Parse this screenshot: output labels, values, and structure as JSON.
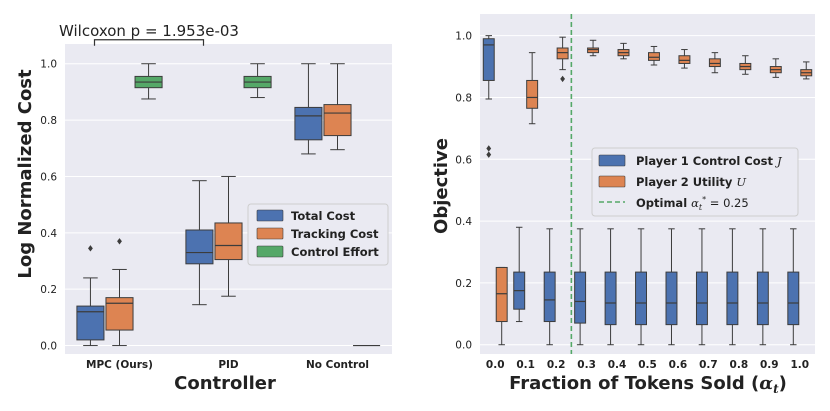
{
  "colors": {
    "panel_bg": "#eaeaf2",
    "grid": "#ffffff",
    "blue": "#4c72b0",
    "orange": "#dd8452",
    "green": "#55a868",
    "whisker": "#3c3c3c",
    "optimal_line": "#55a868"
  },
  "chart_data": [
    {
      "type": "boxplot",
      "title": "",
      "xlabel": "Controller",
      "ylabel": "Log Normalized Cost",
      "ylim": [
        -0.03,
        1.07
      ],
      "yticks": [
        "0.0",
        "0.2",
        "0.4",
        "0.6",
        "0.8",
        "1.0"
      ],
      "yticks_values": [
        0.0,
        0.2,
        0.4,
        0.6,
        0.8,
        1.0
      ],
      "categories": [
        "MPC (Ours)",
        "PID",
        "No Control"
      ],
      "annotation": {
        "text": "Wilcoxon p = 1.953e-03",
        "between": [
          "MPC (Ours)",
          "PID"
        ],
        "y": 1.09
      },
      "legend": {
        "position": "center-right",
        "entries": [
          "Total Cost",
          "Tracking Cost",
          "Control Effort"
        ]
      },
      "series": [
        {
          "name": "Total Cost",
          "color_key": "blue",
          "boxes": [
            {
              "q1": 0.02,
              "median": 0.12,
              "q3": 0.14,
              "whislo": 0.0,
              "whishi": 0.24,
              "fliers": [
                0.345
              ]
            },
            {
              "q1": 0.29,
              "median": 0.33,
              "q3": 0.41,
              "whislo": 0.145,
              "whishi": 0.585,
              "fliers": []
            },
            {
              "q1": 0.73,
              "median": 0.815,
              "q3": 0.845,
              "whislo": 0.68,
              "whishi": 1.0,
              "fliers": []
            }
          ]
        },
        {
          "name": "Tracking Cost",
          "color_key": "orange",
          "boxes": [
            {
              "q1": 0.055,
              "median": 0.15,
              "q3": 0.17,
              "whislo": 0.0,
              "whishi": 0.27,
              "fliers": [
                0.37
              ]
            },
            {
              "q1": 0.305,
              "median": 0.355,
              "q3": 0.435,
              "whislo": 0.175,
              "whishi": 0.6,
              "fliers": []
            },
            {
              "q1": 0.745,
              "median": 0.825,
              "q3": 0.855,
              "whislo": 0.695,
              "whishi": 1.0,
              "fliers": []
            }
          ]
        },
        {
          "name": "Control Effort",
          "color_key": "green",
          "boxes": [
            {
              "q1": 0.915,
              "median": 0.935,
              "q3": 0.955,
              "whislo": 0.875,
              "whishi": 1.0,
              "fliers": []
            },
            {
              "q1": 0.915,
              "median": 0.935,
              "q3": 0.955,
              "whislo": 0.88,
              "whishi": 1.0,
              "fliers": []
            },
            {
              "q1": 0.0,
              "median": 0.0,
              "q3": 0.0,
              "whislo": 0.0,
              "whishi": 0.0,
              "fliers": []
            }
          ]
        }
      ]
    },
    {
      "type": "boxplot",
      "title": "",
      "xlabel": "Fraction of Tokens Sold (αt)",
      "ylabel": "Objective",
      "ylim": [
        -0.03,
        1.07
      ],
      "yticks": [
        "0.0",
        "0.2",
        "0.4",
        "0.6",
        "0.8",
        "1.0"
      ],
      "yticks_values": [
        0.0,
        0.2,
        0.4,
        0.6,
        0.8,
        1.0
      ],
      "categories": [
        "0.0",
        "0.1",
        "0.2",
        "0.3",
        "0.4",
        "0.5",
        "0.6",
        "0.7",
        "0.8",
        "0.9",
        "1.0"
      ],
      "optimal": {
        "value": 0.25,
        "label": "Optimal αt* = 0.25"
      },
      "legend": {
        "position": "center-right",
        "entries": [
          "Player 1 Control Cost J",
          "Player 2 Utility U",
          "Optimal αt* = 0.25"
        ]
      },
      "series": [
        {
          "name": "Player 1 Control Cost J",
          "color_key": "blue",
          "boxes": [
            {
              "q1": 0.855,
              "median": 0.97,
              "q3": 0.99,
              "whislo": 0.795,
              "whishi": 1.0,
              "fliers": [
                0.635,
                0.615
              ]
            },
            {
              "q1": 0.115,
              "median": 0.175,
              "q3": 0.235,
              "whislo": 0.075,
              "whishi": 0.38,
              "fliers": []
            },
            {
              "q1": 0.075,
              "median": 0.145,
              "q3": 0.235,
              "whislo": 0.0,
              "whishi": 0.375,
              "fliers": []
            },
            {
              "q1": 0.07,
              "median": 0.14,
              "q3": 0.235,
              "whislo": 0.0,
              "whishi": 0.375,
              "fliers": []
            },
            {
              "q1": 0.065,
              "median": 0.135,
              "q3": 0.235,
              "whislo": 0.0,
              "whishi": 0.375,
              "fliers": []
            },
            {
              "q1": 0.065,
              "median": 0.135,
              "q3": 0.235,
              "whislo": 0.0,
              "whishi": 0.375,
              "fliers": []
            },
            {
              "q1": 0.065,
              "median": 0.135,
              "q3": 0.235,
              "whislo": 0.0,
              "whishi": 0.375,
              "fliers": []
            },
            {
              "q1": 0.065,
              "median": 0.135,
              "q3": 0.235,
              "whislo": 0.0,
              "whishi": 0.375,
              "fliers": []
            },
            {
              "q1": 0.065,
              "median": 0.135,
              "q3": 0.235,
              "whislo": 0.0,
              "whishi": 0.375,
              "fliers": []
            },
            {
              "q1": 0.065,
              "median": 0.135,
              "q3": 0.235,
              "whislo": 0.0,
              "whishi": 0.375,
              "fliers": []
            },
            {
              "q1": 0.065,
              "median": 0.135,
              "q3": 0.235,
              "whislo": 0.0,
              "whishi": 0.375,
              "fliers": []
            }
          ]
        },
        {
          "name": "Player 2 Utility U",
          "color_key": "orange",
          "boxes": [
            {
              "q1": 0.075,
              "median": 0.165,
              "q3": 0.25,
              "whislo": 0.0,
              "whishi": 0.25,
              "fliers": []
            },
            {
              "q1": 0.765,
              "median": 0.8,
              "q3": 0.855,
              "whislo": 0.715,
              "whishi": 0.945,
              "fliers": []
            },
            {
              "q1": 0.925,
              "median": 0.945,
              "q3": 0.96,
              "whislo": 0.89,
              "whishi": 0.995,
              "fliers": [
                0.86
              ]
            },
            {
              "q1": 0.945,
              "median": 0.955,
              "q3": 0.96,
              "whislo": 0.935,
              "whishi": 0.985,
              "fliers": []
            },
            {
              "q1": 0.935,
              "median": 0.945,
              "q3": 0.955,
              "whislo": 0.925,
              "whishi": 0.975,
              "fliers": []
            },
            {
              "q1": 0.92,
              "median": 0.93,
              "q3": 0.945,
              "whislo": 0.905,
              "whishi": 0.965,
              "fliers": []
            },
            {
              "q1": 0.91,
              "median": 0.92,
              "q3": 0.935,
              "whislo": 0.895,
              "whishi": 0.955,
              "fliers": []
            },
            {
              "q1": 0.9,
              "median": 0.91,
              "q3": 0.925,
              "whislo": 0.88,
              "whishi": 0.945,
              "fliers": []
            },
            {
              "q1": 0.89,
              "median": 0.9,
              "q3": 0.91,
              "whislo": 0.875,
              "whishi": 0.935,
              "fliers": []
            },
            {
              "q1": 0.88,
              "median": 0.89,
              "q3": 0.9,
              "whislo": 0.865,
              "whishi": 0.925,
              "fliers": []
            },
            {
              "q1": 0.87,
              "median": 0.88,
              "q3": 0.89,
              "whislo": 0.86,
              "whishi": 0.915,
              "fliers": []
            }
          ]
        }
      ]
    }
  ]
}
